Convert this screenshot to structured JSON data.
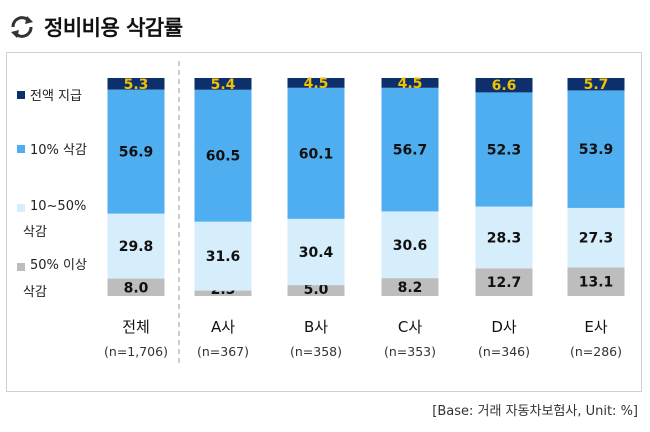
{
  "title": "정비비용 삭감률",
  "icon": "refresh-cycle-icon",
  "source_note": "[Base: 거래 자동차보험사, Unit: %]",
  "colors": {
    "full_payment": "#0d2f6b",
    "cut_10": "#4faeef",
    "cut_10_50": "#d6eefb",
    "cut_50_plus": "#bdbdbd",
    "top_label": "#f2c200"
  },
  "chart_data": {
    "type": "bar",
    "stacked": true,
    "normalized": true,
    "categories": [
      "전체",
      "A사",
      "B사",
      "C사",
      "D사",
      "E사"
    ],
    "sample_sizes": [
      "(n=1,706)",
      "(n=367)",
      "(n=358)",
      "(n=353)",
      "(n=346)",
      "(n=286)"
    ],
    "series": [
      {
        "name": "50% 이상 삭감",
        "values": [
          8.0,
          2.5,
          5.0,
          8.2,
          12.7,
          13.1
        ]
      },
      {
        "name": "10~50% 삭감",
        "values": [
          29.8,
          31.6,
          30.4,
          30.6,
          28.3,
          27.3
        ]
      },
      {
        "name": "10% 삭감",
        "values": [
          56.9,
          60.5,
          60.1,
          56.7,
          52.3,
          53.9
        ]
      },
      {
        "name": "전액 지급",
        "values": [
          5.3,
          5.4,
          4.5,
          4.5,
          6.6,
          5.7
        ]
      }
    ],
    "legend": [
      {
        "line1": "전액 지급",
        "line2": ""
      },
      {
        "line1": "10% 삭감",
        "line2": ""
      },
      {
        "line1": "10~50%",
        "line2": "삭감"
      },
      {
        "line1": "50% 이상",
        "line2": "삭감"
      }
    ],
    "legend_position": "left",
    "grid": false,
    "divider_after_first": true
  }
}
